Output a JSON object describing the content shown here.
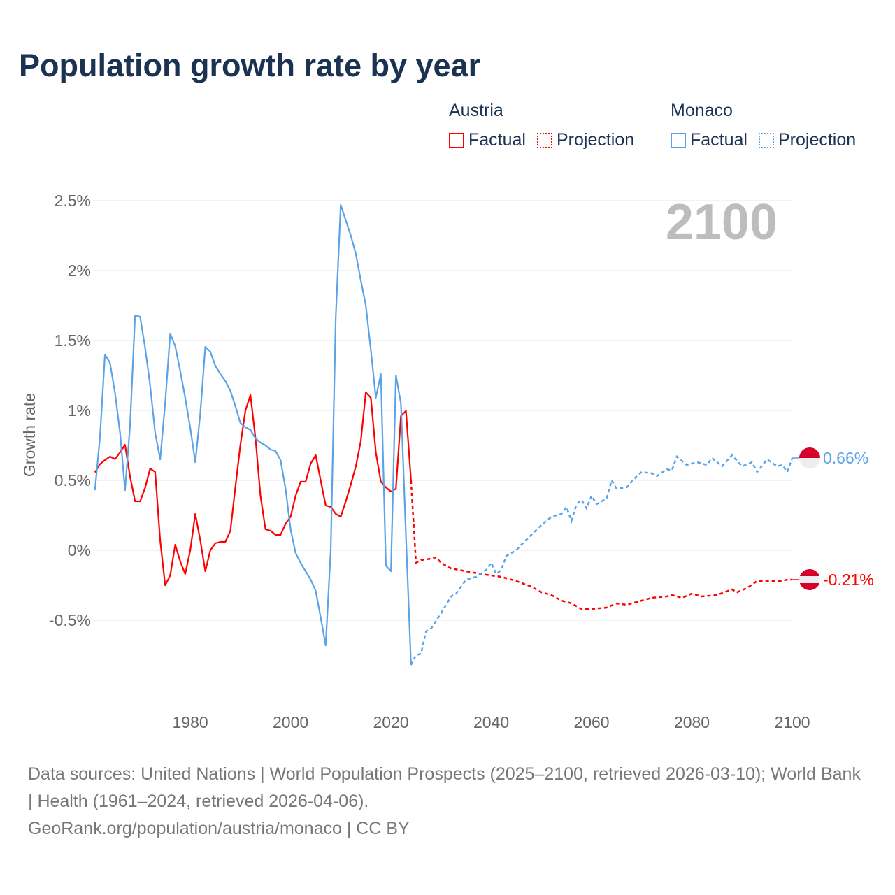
{
  "title": "Population growth rate by year",
  "legend": {
    "groups": [
      {
        "name": "Austria",
        "factual": "Factual",
        "projection": "Projection",
        "color": "#ff0000"
      },
      {
        "name": "Monaco",
        "factual": "Factual",
        "projection": "Projection",
        "color": "#5ba3e8"
      }
    ]
  },
  "footer": {
    "line1": "Data sources: United Nations | World Population Prospects (2025–2100, retrieved 2026-03-10); World Bank | Health (1961–2024, retrieved 2026-04-06).",
    "line2": "GeoRank.org/population/austria/monaco | CC BY"
  },
  "chart_data": {
    "type": "line",
    "title": "Population growth rate by year",
    "ylabel": "Growth rate",
    "xlabel": "",
    "current_year_label": "2100",
    "xlim": [
      1961,
      2100
    ],
    "ylim": [
      -1.0,
      2.5
    ],
    "grid": true,
    "xticks": [
      1980,
      2000,
      2020,
      2040,
      2060,
      2080,
      2100
    ],
    "xtick_labels": [
      "1980",
      "2000",
      "2020",
      "2040",
      "2060",
      "2080",
      "2100"
    ],
    "yticks": [
      2.5,
      2,
      1.5,
      1,
      0.5,
      0,
      -0.5
    ],
    "ytick_labels": [
      "2.5%",
      "2%",
      "1.5%",
      "1%",
      "0.5%",
      "0%",
      "-0.5%"
    ],
    "series": [
      {
        "name": "Austria",
        "color": "#ff0000",
        "end_label": "-0.21%",
        "factual_start_year": 1961,
        "factual": [
          0.557,
          0.616,
          0.645,
          0.67,
          0.652,
          0.7,
          0.754,
          0.527,
          0.35,
          0.35,
          0.446,
          0.584,
          0.56,
          0.07,
          -0.25,
          -0.18,
          0.04,
          -0.08,
          -0.17,
          0.0,
          0.26,
          0.07,
          -0.15,
          0.0,
          0.05,
          0.06,
          0.06,
          0.14,
          0.455,
          0.754,
          1.0,
          1.11,
          0.8,
          0.39,
          0.15,
          0.14,
          0.11,
          0.11,
          0.19,
          0.24,
          0.39,
          0.49,
          0.49,
          0.62,
          0.68,
          0.5,
          0.32,
          0.31,
          0.26,
          0.24,
          0.35,
          0.47,
          0.6,
          0.78,
          1.13,
          1.09,
          0.7,
          0.49,
          0.45,
          0.42,
          0.44,
          0.96,
          0.997,
          0.5
        ],
        "projection": [
          [
            2024,
            0.5
          ],
          [
            2025,
            -0.09
          ],
          [
            2026,
            -0.07
          ],
          [
            2028,
            -0.06
          ],
          [
            2029,
            -0.05
          ],
          [
            2030,
            -0.09
          ],
          [
            2032,
            -0.13
          ],
          [
            2035,
            -0.15
          ],
          [
            2038,
            -0.17
          ],
          [
            2040,
            -0.18
          ],
          [
            2042,
            -0.19
          ],
          [
            2045,
            -0.22
          ],
          [
            2048,
            -0.26
          ],
          [
            2050,
            -0.3
          ],
          [
            2052,
            -0.32
          ],
          [
            2054,
            -0.36
          ],
          [
            2056,
            -0.38
          ],
          [
            2058,
            -0.42
          ],
          [
            2060,
            -0.42
          ],
          [
            2063,
            -0.41
          ],
          [
            2065,
            -0.38
          ],
          [
            2067,
            -0.39
          ],
          [
            2070,
            -0.36
          ],
          [
            2072,
            -0.34
          ],
          [
            2075,
            -0.33
          ],
          [
            2076,
            -0.32
          ],
          [
            2078,
            -0.34
          ],
          [
            2080,
            -0.31
          ],
          [
            2082,
            -0.33
          ],
          [
            2085,
            -0.32
          ],
          [
            2088,
            -0.28
          ],
          [
            2089,
            -0.3
          ],
          [
            2091,
            -0.27
          ],
          [
            2093,
            -0.22
          ],
          [
            2095,
            -0.22
          ],
          [
            2098,
            -0.22
          ],
          [
            2099,
            -0.21
          ],
          [
            2100,
            -0.21
          ]
        ]
      },
      {
        "name": "Monaco",
        "color": "#5ba3e8",
        "end_label": "0.66%",
        "factual_start_year": 1961,
        "factual": [
          0.43,
          0.81,
          1.4,
          1.34,
          1.125,
          0.84,
          0.43,
          0.89,
          1.68,
          1.67,
          1.45,
          1.18,
          0.84,
          0.65,
          1.05,
          1.55,
          1.46,
          1.28,
          1.09,
          0.875,
          0.63,
          0.98,
          1.455,
          1.42,
          1.32,
          1.26,
          1.21,
          1.14,
          1.03,
          0.91,
          0.88,
          0.86,
          0.8,
          0.77,
          0.75,
          0.72,
          0.71,
          0.645,
          0.44,
          0.15,
          -0.02,
          -0.09,
          -0.15,
          -0.21,
          -0.29,
          -0.48,
          -0.68,
          0.0,
          1.67,
          2.47,
          2.36,
          2.25,
          2.12,
          1.93,
          1.75,
          1.43,
          1.09,
          1.26,
          -0.11,
          -0.15,
          1.25,
          1.05,
          0.1,
          -0.82
        ],
        "projection": [
          [
            2024,
            -0.82
          ],
          [
            2025,
            -0.75
          ],
          [
            2026,
            -0.74
          ],
          [
            2027,
            -0.58
          ],
          [
            2028,
            -0.56
          ],
          [
            2030,
            -0.45
          ],
          [
            2032,
            -0.33
          ],
          [
            2033,
            -0.31
          ],
          [
            2035,
            -0.21
          ],
          [
            2037,
            -0.19
          ],
          [
            2039,
            -0.14
          ],
          [
            2040,
            -0.09
          ],
          [
            2041,
            -0.17
          ],
          [
            2042,
            -0.14
          ],
          [
            2043,
            -0.04
          ],
          [
            2045,
            0.0
          ],
          [
            2046,
            0.04
          ],
          [
            2048,
            0.11
          ],
          [
            2050,
            0.18
          ],
          [
            2052,
            0.24
          ],
          [
            2054,
            0.26
          ],
          [
            2055,
            0.31
          ],
          [
            2056,
            0.21
          ],
          [
            2057,
            0.33
          ],
          [
            2058,
            0.36
          ],
          [
            2059,
            0.3
          ],
          [
            2060,
            0.39
          ],
          [
            2061,
            0.33
          ],
          [
            2063,
            0.37
          ],
          [
            2064,
            0.5
          ],
          [
            2065,
            0.44
          ],
          [
            2067,
            0.45
          ],
          [
            2069,
            0.53
          ],
          [
            2070,
            0.56
          ],
          [
            2072,
            0.55
          ],
          [
            2073,
            0.53
          ],
          [
            2075,
            0.58
          ],
          [
            2076,
            0.57
          ],
          [
            2077,
            0.67
          ],
          [
            2079,
            0.61
          ],
          [
            2081,
            0.63
          ],
          [
            2083,
            0.61
          ],
          [
            2084,
            0.66
          ],
          [
            2086,
            0.6
          ],
          [
            2088,
            0.68
          ],
          [
            2090,
            0.6
          ],
          [
            2092,
            0.63
          ],
          [
            2093,
            0.56
          ],
          [
            2095,
            0.65
          ],
          [
            2097,
            0.6
          ],
          [
            2098,
            0.61
          ],
          [
            2099,
            0.56
          ],
          [
            2100,
            0.66
          ]
        ]
      }
    ]
  }
}
